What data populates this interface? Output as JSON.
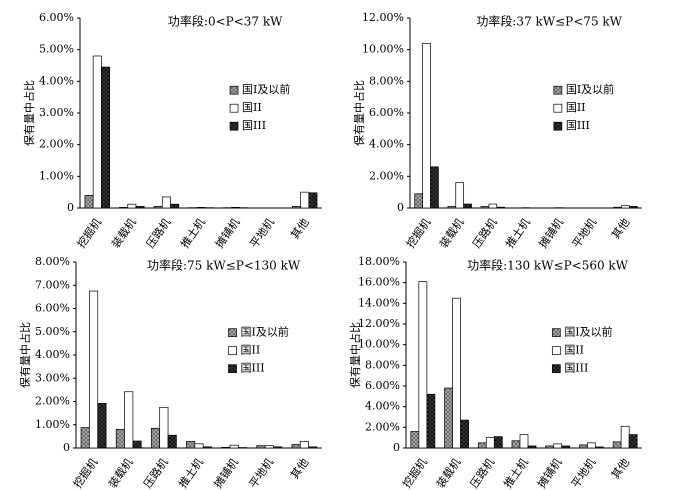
{
  "chart_data": [
    {
      "type": "bar",
      "title": "功率段:0<P<37 kW",
      "y_label": "保有量中占比",
      "categories": [
        "挖掘机",
        "装载机",
        "压路机",
        "推土机",
        "摊铺机",
        "平地机",
        "其他"
      ],
      "series": [
        {
          "name": "国I及以前",
          "color": "#b0b0b0",
          "values": [
            0.4,
            0.02,
            0.05,
            0.01,
            0.01,
            0,
            0.05
          ]
        },
        {
          "name": "国II",
          "color": "#ffffff",
          "values": [
            4.8,
            0.12,
            0.35,
            0.02,
            0.02,
            0,
            0.5
          ]
        },
        {
          "name": "国III",
          "color": "#404040",
          "values": [
            4.45,
            0.05,
            0.12,
            0.01,
            0.01,
            0,
            0.48
          ]
        }
      ],
      "ylim": [
        0,
        6
      ],
      "yticks": [
        0,
        {
          "value": 1,
          "label": "1.00%"
        },
        {
          "value": 2,
          "label": "2.00%"
        },
        {
          "value": 3,
          "label": "3.00%"
        },
        {
          "value": 4,
          "label": "4.00%"
        },
        {
          "value": 5,
          "label": "5.00%"
        },
        {
          "value": 6,
          "label": "6.00%"
        }
      ]
    },
    {
      "type": "bar",
      "title": "功率段:37 kW≤P<75 kW",
      "y_label": "保有量中占比",
      "categories": [
        "挖掘机",
        "装载机",
        "压路机",
        "推土机",
        "摊铺机",
        "平地机",
        "其他"
      ],
      "series": [
        {
          "name": "国I及以前",
          "color": "#b0b0b0",
          "values": [
            0.9,
            0.1,
            0.1,
            0.01,
            0.01,
            0,
            0.05
          ]
        },
        {
          "name": "国II",
          "color": "#ffffff",
          "values": [
            10.4,
            1.6,
            0.25,
            0.02,
            0.02,
            0,
            0.15
          ]
        },
        {
          "name": "国III",
          "color": "#404040",
          "values": [
            2.6,
            0.25,
            0.05,
            0.01,
            0.01,
            0,
            0.1
          ]
        }
      ],
      "ylim": [
        0,
        12
      ],
      "yticks": [
        0,
        {
          "value": 2,
          "label": "2.00%"
        },
        {
          "value": 4,
          "label": "4.00%"
        },
        {
          "value": 6,
          "label": "6.00%"
        },
        {
          "value": 8,
          "label": "8.00%"
        },
        {
          "value": 10,
          "label": "10.00%"
        },
        {
          "value": 12,
          "label": "12.00%"
        }
      ]
    },
    {
      "type": "bar",
      "title": "功率段:75 kW≤P<130 kW",
      "y_label": "保有量中占比",
      "categories": [
        "挖掘机",
        "装载机",
        "压路机",
        "推土机",
        "摊铺机",
        "平地机",
        "其他"
      ],
      "series": [
        {
          "name": "国I及以前",
          "color": "#b0b0b0",
          "values": [
            0.88,
            0.8,
            0.85,
            0.28,
            0.03,
            0.1,
            0.15
          ]
        },
        {
          "name": "国II",
          "color": "#ffffff",
          "values": [
            6.75,
            2.42,
            1.75,
            0.18,
            0.12,
            0.1,
            0.28
          ]
        },
        {
          "name": "国III",
          "color": "#404040",
          "values": [
            1.92,
            0.3,
            0.55,
            0.05,
            0.02,
            0.05,
            0.05
          ]
        }
      ],
      "ylim": [
        0,
        8
      ],
      "yticks": [
        0,
        {
          "value": 1,
          "label": "1.00%"
        },
        {
          "value": 2,
          "label": "2.00%"
        },
        {
          "value": 3,
          "label": "3.00%"
        },
        {
          "value": 4,
          "label": "4.00%"
        },
        {
          "value": 5,
          "label": "5.00%"
        },
        {
          "value": 6,
          "label": "6.00%"
        },
        {
          "value": 7,
          "label": "7.00%"
        },
        {
          "value": 8,
          "label": "8.00%"
        }
      ]
    },
    {
      "type": "bar",
      "title": "功率段:130 kW≤P<560 kW",
      "y_label": "保有量中占比",
      "categories": [
        "挖掘机",
        "装载机",
        "压路机",
        "推土机",
        "摊铺机",
        "平地机",
        "其他"
      ],
      "series": [
        {
          "name": "国I及以前",
          "color": "#b0b0b0",
          "values": [
            1.6,
            5.8,
            0.5,
            0.7,
            0.2,
            0.3,
            0.6
          ]
        },
        {
          "name": "国II",
          "color": "#ffffff",
          "values": [
            16.1,
            14.5,
            1.0,
            1.3,
            0.4,
            0.5,
            2.1
          ]
        },
        {
          "name": "国III",
          "color": "#404040",
          "values": [
            5.2,
            2.7,
            1.1,
            0.2,
            0.2,
            0.1,
            1.3
          ]
        }
      ],
      "ylim": [
        0,
        18
      ],
      "yticks": [
        0,
        {
          "value": 2,
          "label": "2.00%"
        },
        {
          "value": 4,
          "label": "4.00%"
        },
        {
          "value": 6,
          "label": "6.00%"
        },
        {
          "value": 8,
          "label": "8.00%"
        },
        {
          "value": 10,
          "label": "10.00%"
        },
        {
          "value": 12,
          "label": "12.00%"
        },
        {
          "value": 14,
          "label": "14.00%"
        },
        {
          "value": 16,
          "label": "16.00%"
        },
        {
          "value": 18,
          "label": "18.00%"
        }
      ]
    }
  ]
}
